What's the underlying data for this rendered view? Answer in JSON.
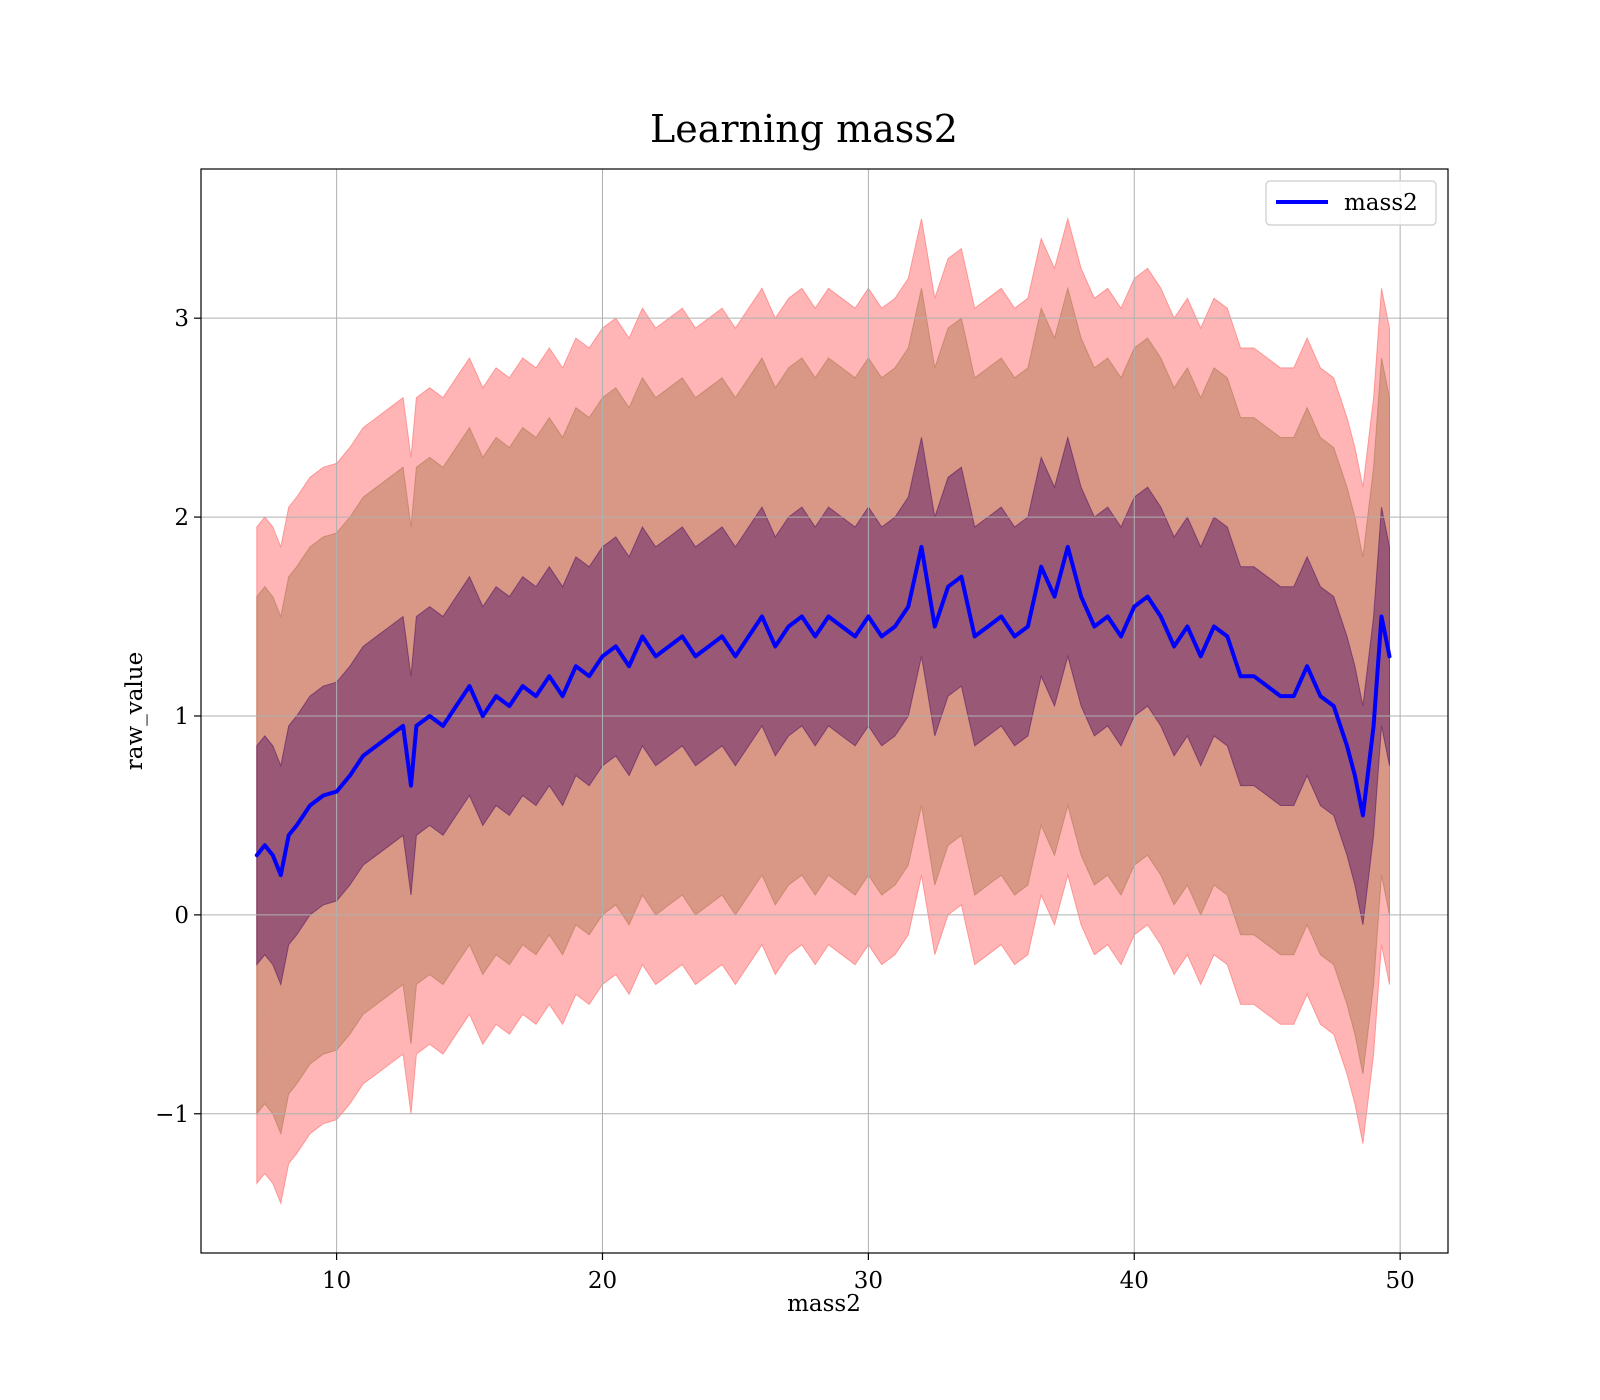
{
  "chart_data": {
    "type": "line",
    "title": "Learning mass2",
    "xlabel": "mass2",
    "ylabel": "raw_value",
    "xlim": [
      4.9,
      51.8
    ],
    "ylim": [
      -1.7,
      3.75
    ],
    "x_ticks": [
      10,
      20,
      30,
      40,
      50
    ],
    "y_ticks": [
      -1,
      0,
      1,
      2,
      3
    ],
    "x_tick_labels": [
      "10",
      "20",
      "30",
      "40",
      "50"
    ],
    "y_tick_labels": [
      "−1",
      "0",
      "1",
      "2",
      "3"
    ],
    "grid": true,
    "legend": {
      "position": "top-right",
      "entries": [
        "mass2"
      ]
    },
    "series": [
      {
        "name": "mass2",
        "color": "#0000ff",
        "x": [
          7.0,
          7.3,
          7.6,
          7.9,
          8.2,
          8.5,
          9.0,
          9.5,
          10.0,
          10.5,
          11.0,
          11.5,
          12.0,
          12.5,
          12.8,
          13.0,
          13.5,
          14.0,
          14.5,
          15.0,
          15.5,
          16.0,
          16.5,
          17.0,
          17.5,
          18.0,
          18.5,
          19.0,
          19.5,
          20.0,
          20.5,
          21.0,
          21.5,
          22.0,
          22.5,
          23.0,
          23.5,
          24.0,
          24.5,
          25.0,
          25.5,
          26.0,
          26.5,
          27.0,
          27.5,
          28.0,
          28.5,
          29.0,
          29.5,
          30.0,
          30.5,
          31.0,
          31.5,
          32.0,
          32.5,
          33.0,
          33.5,
          34.0,
          34.5,
          35.0,
          35.5,
          36.0,
          36.5,
          37.0,
          37.5,
          38.0,
          38.5,
          39.0,
          39.5,
          40.0,
          40.5,
          41.0,
          41.5,
          42.0,
          42.5,
          43.0,
          43.5,
          44.0,
          44.5,
          45.0,
          45.5,
          46.0,
          46.5,
          47.0,
          47.5,
          48.0,
          48.3,
          48.6,
          49.0,
          49.3,
          49.6
        ],
        "y": [
          0.3,
          0.35,
          0.3,
          0.2,
          0.4,
          0.45,
          0.55,
          0.6,
          0.62,
          0.7,
          0.8,
          0.85,
          0.9,
          0.95,
          0.65,
          0.95,
          1.0,
          0.95,
          1.05,
          1.15,
          1.0,
          1.1,
          1.05,
          1.15,
          1.1,
          1.2,
          1.1,
          1.25,
          1.2,
          1.3,
          1.35,
          1.25,
          1.4,
          1.3,
          1.35,
          1.4,
          1.3,
          1.35,
          1.4,
          1.3,
          1.4,
          1.5,
          1.35,
          1.45,
          1.5,
          1.4,
          1.5,
          1.45,
          1.4,
          1.5,
          1.4,
          1.45,
          1.55,
          1.85,
          1.45,
          1.65,
          1.7,
          1.4,
          1.45,
          1.5,
          1.4,
          1.45,
          1.75,
          1.6,
          1.85,
          1.6,
          1.45,
          1.5,
          1.4,
          1.55,
          1.6,
          1.5,
          1.35,
          1.45,
          1.3,
          1.45,
          1.4,
          1.2,
          1.2,
          1.15,
          1.1,
          1.1,
          1.25,
          1.1,
          1.05,
          0.85,
          0.7,
          0.5,
          0.95,
          1.5,
          1.3
        ]
      }
    ],
    "bands": [
      {
        "name": "inner",
        "color": "#5a1a66",
        "halfwidth": 0.55
      },
      {
        "name": "middle",
        "color": "#b37a55",
        "halfwidth": 1.3
      },
      {
        "name": "outer",
        "color": "#ff6b6b",
        "halfwidth": 1.65
      }
    ]
  }
}
